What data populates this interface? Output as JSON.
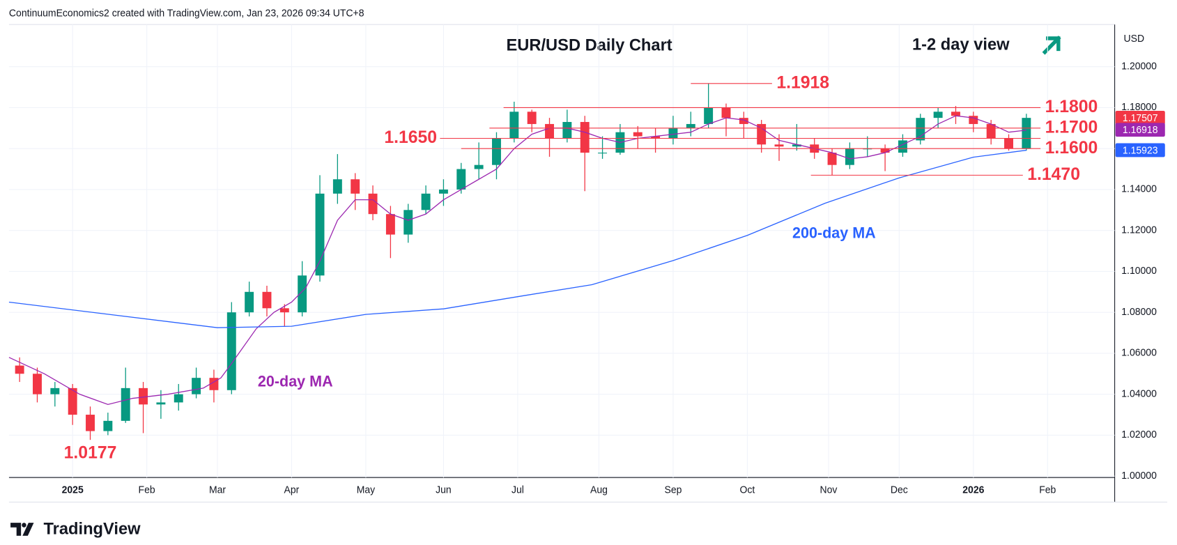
{
  "header": {
    "text": "ContinuumEconomics2 created with TradingView.com, Jan 23, 2026 09:34 UTC+8"
  },
  "footer": {
    "brand": "TradingView"
  },
  "chart_data": {
    "type": "candlestick",
    "title": "EUR/USD Daily Chart",
    "view": "1-2 day view",
    "currency": "USD",
    "xlim": [
      0,
      313
    ],
    "xticks": [
      {
        "value": 18,
        "label": "2025"
      },
      {
        "value": 39,
        "label": "Feb"
      },
      {
        "value": 59,
        "label": "Mar"
      },
      {
        "value": 80,
        "label": "Apr"
      },
      {
        "value": 101,
        "label": "May"
      },
      {
        "value": 123,
        "label": "Jun"
      },
      {
        "value": 144,
        "label": "Jul"
      },
      {
        "value": 167,
        "label": "Aug"
      },
      {
        "value": 188,
        "label": "Sep"
      },
      {
        "value": 209,
        "label": "Oct"
      },
      {
        "value": 232,
        "label": "Nov"
      },
      {
        "value": 252,
        "label": "Dec"
      },
      {
        "value": 273,
        "label": "2026"
      },
      {
        "value": 294,
        "label": "Feb"
      }
    ],
    "ylim": [
      0.9993,
      1.2206
    ],
    "yticks": [
      {
        "value": 1.0,
        "label": "1.00000"
      },
      {
        "value": 1.02,
        "label": "1.02000"
      },
      {
        "value": 1.04,
        "label": "1.04000"
      },
      {
        "value": 1.06,
        "label": "1.06000"
      },
      {
        "value": 1.08,
        "label": "1.08000"
      },
      {
        "value": 1.1,
        "label": "1.10000"
      },
      {
        "value": 1.12,
        "label": "1.12000"
      },
      {
        "value": 1.14,
        "label": "1.14000"
      },
      {
        "value": 1.16,
        "label": "1.16000"
      },
      {
        "value": 1.18,
        "label": "1.18000"
      },
      {
        "value": 1.2,
        "label": "1.20000"
      }
    ],
    "grid": true,
    "up_color": "#089981",
    "down_color": "#f23645",
    "candles": {
      "x": [
        3,
        8,
        13,
        18,
        23,
        28,
        33,
        38,
        43,
        48,
        53,
        58,
        63,
        68,
        73,
        78,
        83,
        88,
        93,
        98,
        103,
        108,
        113,
        118,
        123,
        128,
        133,
        138,
        143,
        148,
        153,
        158,
        163,
        168,
        173,
        178,
        183,
        188,
        193,
        198,
        203,
        208,
        213,
        218,
        223,
        228,
        233,
        238,
        243,
        248,
        253,
        258,
        263,
        268,
        273,
        278,
        283,
        288
      ],
      "open": [
        1.054,
        1.05,
        1.04,
        1.043,
        1.03,
        1.022,
        1.027,
        1.043,
        1.035,
        1.036,
        1.04,
        1.048,
        1.042,
        1.08,
        1.09,
        1.082,
        1.08,
        1.098,
        1.138,
        1.145,
        1.138,
        1.128,
        1.118,
        1.13,
        1.138,
        1.14,
        1.15,
        1.152,
        1.165,
        1.178,
        1.172,
        1.165,
        1.173,
        1.158,
        1.158,
        1.168,
        1.166,
        1.165,
        1.17,
        1.172,
        1.18,
        1.175,
        1.172,
        1.162,
        1.161,
        1.162,
        1.158,
        1.152,
        1.16,
        1.16,
        1.158,
        1.164,
        1.175,
        1.178,
        1.176,
        1.172,
        1.165,
        1.16
      ],
      "high": [
        1.058,
        1.053,
        1.046,
        1.045,
        1.034,
        1.031,
        1.053,
        1.046,
        1.042,
        1.045,
        1.053,
        1.052,
        1.085,
        1.095,
        1.093,
        1.084,
        1.105,
        1.147,
        1.1573,
        1.148,
        1.142,
        1.132,
        1.133,
        1.142,
        1.145,
        1.153,
        1.163,
        1.168,
        1.1829,
        1.179,
        1.175,
        1.179,
        1.176,
        1.166,
        1.172,
        1.171,
        1.17,
        1.176,
        1.178,
        1.1918,
        1.182,
        1.178,
        1.174,
        1.167,
        1.172,
        1.165,
        1.16,
        1.163,
        1.166,
        1.162,
        1.167,
        1.177,
        1.18,
        1.1808,
        1.178,
        1.174,
        1.167,
        1.177
      ],
      "low": [
        1.046,
        1.036,
        1.034,
        1.025,
        1.0177,
        1.02,
        1.026,
        1.021,
        1.028,
        1.032,
        1.038,
        1.036,
        1.04,
        1.078,
        1.078,
        1.073,
        1.078,
        1.095,
        1.133,
        1.13,
        1.125,
        1.1065,
        1.114,
        1.128,
        1.132,
        1.138,
        1.145,
        1.145,
        1.163,
        1.168,
        1.156,
        1.163,
        1.1392,
        1.155,
        1.157,
        1.16,
        1.158,
        1.162,
        1.166,
        1.17,
        1.166,
        1.165,
        1.158,
        1.154,
        1.159,
        1.155,
        1.1469,
        1.15,
        1.156,
        1.149,
        1.156,
        1.162,
        1.17,
        1.172,
        1.168,
        1.162,
        1.159,
        1.159
      ],
      "close": [
        1.05,
        1.04,
        1.043,
        1.03,
        1.022,
        1.027,
        1.043,
        1.035,
        1.036,
        1.04,
        1.048,
        1.042,
        1.08,
        1.09,
        1.082,
        1.08,
        1.098,
        1.138,
        1.145,
        1.138,
        1.128,
        1.118,
        1.13,
        1.138,
        1.14,
        1.15,
        1.152,
        1.165,
        1.178,
        1.172,
        1.165,
        1.173,
        1.158,
        1.158,
        1.168,
        1.166,
        1.165,
        1.17,
        1.172,
        1.18,
        1.175,
        1.172,
        1.162,
        1.161,
        1.162,
        1.158,
        1.152,
        1.16,
        1.16,
        1.158,
        1.164,
        1.175,
        1.178,
        1.176,
        1.172,
        1.165,
        1.16,
        1.175
      ]
    },
    "series": [
      {
        "name": "20-day MA",
        "color": "#9c27b0",
        "x": [
          0,
          10,
          20,
          28,
          35,
          45,
          55,
          60,
          63,
          70,
          75,
          80,
          84,
          88,
          93,
          98,
          103,
          108,
          113,
          118,
          123,
          128,
          133,
          138,
          143,
          148,
          153,
          158,
          163,
          168,
          173,
          178,
          183,
          188,
          193,
          198,
          203,
          208,
          213,
          218,
          223,
          228,
          233,
          238,
          243,
          248,
          253,
          258,
          263,
          268,
          273,
          278,
          283,
          288
        ],
        "values": [
          1.058,
          1.05,
          1.04,
          1.035,
          1.038,
          1.04,
          1.043,
          1.048,
          1.055,
          1.072,
          1.08,
          1.085,
          1.092,
          1.105,
          1.125,
          1.135,
          1.135,
          1.128,
          1.125,
          1.128,
          1.135,
          1.14,
          1.145,
          1.15,
          1.16,
          1.167,
          1.17,
          1.17,
          1.168,
          1.165,
          1.163,
          1.165,
          1.166,
          1.167,
          1.168,
          1.172,
          1.175,
          1.174,
          1.17,
          1.164,
          1.162,
          1.16,
          1.158,
          1.155,
          1.156,
          1.158,
          1.162,
          1.166,
          1.172,
          1.176,
          1.175,
          1.172,
          1.168,
          1.169
        ]
      },
      {
        "name": "200-day MA",
        "color": "#2962ff",
        "x": [
          0,
          59,
          80,
          101,
          123,
          147,
          165,
          188,
          209,
          231,
          252,
          273,
          288
        ],
        "values": [
          1.085,
          1.0725,
          1.0732,
          1.079,
          1.0817,
          1.0885,
          1.0935,
          1.1053,
          1.1176,
          1.1333,
          1.1457,
          1.1558,
          1.1592
        ]
      }
    ],
    "levels": [
      {
        "value": 1.1918,
        "label": "1.1918",
        "x": [
          193,
          216
        ],
        "side": "right"
      },
      {
        "value": 1.18,
        "label": "1.1800",
        "x": [
          140,
          292
        ],
        "side": "right"
      },
      {
        "value": 1.17,
        "label": "1.1700",
        "x": [
          136,
          292
        ],
        "side": "right"
      },
      {
        "value": 1.165,
        "label": "1.1650",
        "x": [
          122,
          292
        ],
        "side": "left"
      },
      {
        "value": 1.16,
        "label": "1.1600",
        "x": [
          128,
          292
        ],
        "side": "right"
      },
      {
        "value": 1.147,
        "label": "1.1470",
        "x": [
          227,
          287
        ],
        "side": "right"
      }
    ],
    "low_label": {
      "value": 1.0177,
      "label": "1.0177",
      "x": 23
    },
    "last_values": [
      {
        "value": 1.17507,
        "label": "1.17507",
        "color": "#f23645"
      },
      {
        "value": 1.16918,
        "label": "1.16918",
        "color": "#9c27b0"
      },
      {
        "value": 1.15923,
        "label": "1.15923",
        "color": "#2962ff"
      }
    ]
  }
}
